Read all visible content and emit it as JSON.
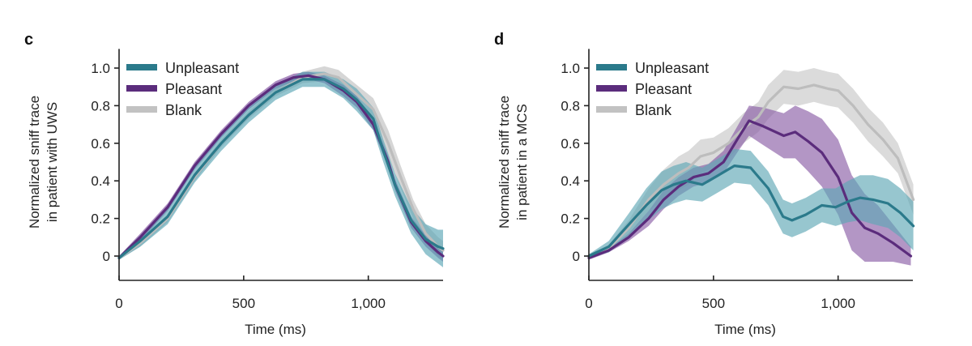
{
  "chart_data": [
    {
      "type": "line",
      "panel_label": "c",
      "title": "",
      "xlabel": "Time (ms)",
      "ylabel": [
        "Normalized sniff trace",
        "in patient with UWS"
      ],
      "xlim": [
        0,
        1300
      ],
      "ylim": [
        -0.12,
        1.05
      ],
      "xticks": [
        0,
        500,
        1000
      ],
      "xtick_labels": [
        "0",
        "500",
        "1,000"
      ],
      "yticks": [
        0,
        0.2,
        0.4,
        0.6,
        0.8,
        1.0
      ],
      "ytick_labels": [
        "0",
        "0.2",
        "0.4",
        "0.6",
        "0.8",
        "1.0"
      ],
      "grid": false,
      "legend_position": "top-left",
      "series": [
        {
          "name": "Blank",
          "color": "#bdbdbd",
          "band_color": "#c8c8c8",
          "x": [
            0,
            85,
            195,
            303,
            410,
            520,
            628,
            736,
            824,
            880,
            954,
            1020,
            1080,
            1130,
            1180,
            1230,
            1280,
            1300
          ],
          "y": [
            -0.01,
            0.07,
            0.2,
            0.42,
            0.6,
            0.75,
            0.87,
            0.95,
            0.97,
            0.95,
            0.86,
            0.78,
            0.6,
            0.42,
            0.25,
            0.12,
            0.05,
            0.03
          ],
          "err": [
            0.01,
            0.02,
            0.02,
            0.02,
            0.02,
            0.02,
            0.02,
            0.03,
            0.04,
            0.04,
            0.05,
            0.06,
            0.07,
            0.06,
            0.05,
            0.05,
            0.05,
            0.05
          ]
        },
        {
          "name": "Pleasant",
          "color": "#5b2c7c",
          "band_color": "#7c4c9c",
          "x": [
            0,
            85,
            195,
            303,
            410,
            520,
            628,
            700,
            760,
            824,
            900,
            954,
            1020,
            1080,
            1107,
            1172,
            1230,
            1280,
            1300
          ],
          "y": [
            -0.01,
            0.1,
            0.26,
            0.48,
            0.65,
            0.8,
            0.91,
            0.95,
            0.96,
            0.94,
            0.88,
            0.82,
            0.7,
            0.5,
            0.38,
            0.18,
            0.08,
            0.02,
            0.0
          ],
          "err": [
            0.01,
            0.02,
            0.02,
            0.02,
            0.02,
            0.02,
            0.02,
            0.02,
            0.02,
            0.02,
            0.03,
            0.03,
            0.03,
            0.03,
            0.03,
            0.03,
            0.03,
            0.03,
            0.03
          ]
        },
        {
          "name": "Unpleasant",
          "color": "#2b7a8b",
          "band_color": "#5aa6b6",
          "x": [
            0,
            85,
            195,
            303,
            410,
            520,
            628,
            736,
            824,
            900,
            954,
            1020,
            1060,
            1107,
            1172,
            1230,
            1280,
            1300
          ],
          "y": [
            -0.01,
            0.08,
            0.21,
            0.43,
            0.6,
            0.75,
            0.87,
            0.94,
            0.94,
            0.89,
            0.83,
            0.73,
            0.56,
            0.38,
            0.19,
            0.09,
            0.05,
            0.04
          ],
          "err": [
            0.01,
            0.03,
            0.04,
            0.04,
            0.04,
            0.04,
            0.04,
            0.04,
            0.04,
            0.05,
            0.06,
            0.06,
            0.06,
            0.06,
            0.07,
            0.08,
            0.09,
            0.1
          ]
        }
      ]
    },
    {
      "type": "line",
      "panel_label": "d",
      "title": "",
      "xlabel": "Time (ms)",
      "ylabel": [
        "Normalized sniff trace",
        "in patient in a MCS"
      ],
      "xlim": [
        0,
        1300
      ],
      "ylim": [
        -0.12,
        1.05
      ],
      "xticks": [
        0,
        500,
        1000
      ],
      "xtick_labels": [
        "0",
        "500",
        "1,000"
      ],
      "yticks": [
        0,
        0.2,
        0.4,
        0.6,
        0.8,
        1.0
      ],
      "ytick_labels": [
        "0",
        "0.2",
        "0.4",
        "0.6",
        "0.8",
        "1.0"
      ],
      "grid": false,
      "legend_position": "top-left",
      "series": [
        {
          "name": "Blank",
          "color": "#bdbdbd",
          "band_color": "#cfcfcf",
          "x": [
            0,
            80,
            160,
            240,
            300,
            360,
            400,
            448,
            500,
            560,
            620,
            680,
            720,
            782,
            840,
            903,
            960,
            1000,
            1060,
            1120,
            1180,
            1240,
            1302
          ],
          "y": [
            0.0,
            0.04,
            0.15,
            0.3,
            0.38,
            0.44,
            0.47,
            0.53,
            0.55,
            0.6,
            0.68,
            0.74,
            0.82,
            0.9,
            0.89,
            0.91,
            0.89,
            0.88,
            0.8,
            0.7,
            0.62,
            0.52,
            0.3
          ],
          "err": [
            0.01,
            0.02,
            0.04,
            0.06,
            0.08,
            0.09,
            0.09,
            0.09,
            0.08,
            0.08,
            0.08,
            0.08,
            0.09,
            0.09,
            0.09,
            0.09,
            0.09,
            0.09,
            0.09,
            0.09,
            0.09,
            0.08,
            0.08
          ]
        },
        {
          "name": "Pleasant",
          "color": "#5b2c7c",
          "band_color": "#8a5ea6",
          "x": [
            0,
            80,
            160,
            240,
            300,
            360,
            420,
            480,
            540,
            600,
            643,
            700,
            782,
            828,
            880,
            935,
            1000,
            1055,
            1107,
            1160,
            1220,
            1292
          ],
          "y": [
            -0.01,
            0.03,
            0.1,
            0.2,
            0.3,
            0.37,
            0.42,
            0.44,
            0.5,
            0.63,
            0.72,
            0.69,
            0.64,
            0.66,
            0.61,
            0.55,
            0.42,
            0.23,
            0.15,
            0.12,
            0.07,
            0.0
          ],
          "err": [
            0.01,
            0.01,
            0.02,
            0.04,
            0.05,
            0.05,
            0.05,
            0.05,
            0.06,
            0.07,
            0.08,
            0.1,
            0.12,
            0.14,
            0.16,
            0.18,
            0.2,
            0.2,
            0.18,
            0.15,
            0.1,
            0.05
          ]
        },
        {
          "name": "Unpleasant",
          "color": "#2b7a8b",
          "band_color": "#5fa7b6",
          "x": [
            0,
            80,
            162,
            230,
            292,
            340,
            390,
            455,
            520,
            584,
            649,
            720,
            779,
            815,
            870,
            935,
            990,
            1040,
            1088,
            1140,
            1200,
            1250,
            1302
          ],
          "y": [
            0.0,
            0.05,
            0.17,
            0.27,
            0.35,
            0.38,
            0.4,
            0.38,
            0.43,
            0.48,
            0.47,
            0.36,
            0.21,
            0.19,
            0.22,
            0.27,
            0.26,
            0.29,
            0.31,
            0.3,
            0.28,
            0.23,
            0.16
          ],
          "err": [
            0.01,
            0.03,
            0.06,
            0.09,
            0.1,
            0.1,
            0.1,
            0.09,
            0.09,
            0.09,
            0.09,
            0.09,
            0.09,
            0.09,
            0.09,
            0.09,
            0.1,
            0.11,
            0.12,
            0.13,
            0.13,
            0.13,
            0.13
          ]
        }
      ]
    }
  ]
}
